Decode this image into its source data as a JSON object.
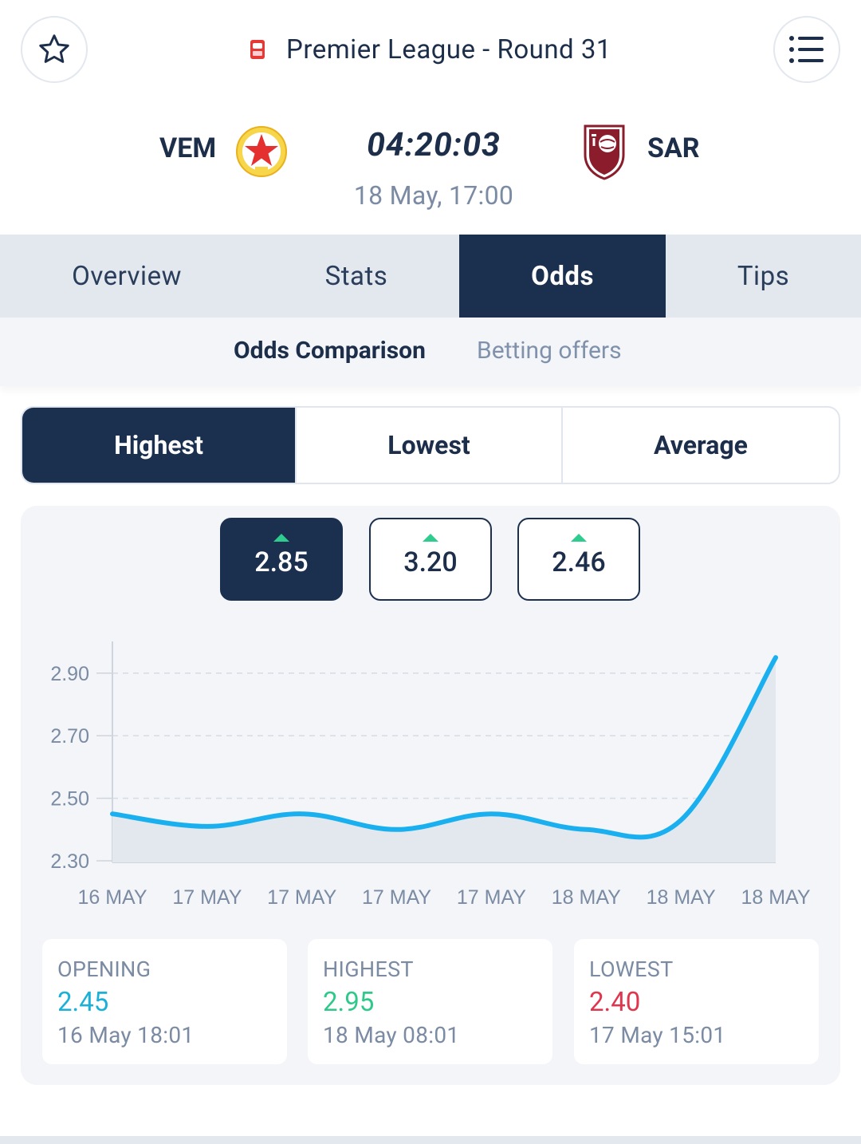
{
  "header": {
    "league_title": "Premier League - Round 31"
  },
  "match": {
    "home_code": "VEM",
    "away_code": "SAR",
    "countdown": "04:20:03",
    "kickoff": "18 May, 17:00"
  },
  "tabs": [
    {
      "label": "Overview",
      "active": false
    },
    {
      "label": "Stats",
      "active": false
    },
    {
      "label": "Odds",
      "active": true
    },
    {
      "label": "Tips",
      "active": false
    }
  ],
  "subtabs": [
    {
      "label": "Odds Comparison",
      "active": true
    },
    {
      "label": "Betting offers",
      "active": false
    }
  ],
  "segments": [
    {
      "label": "Highest",
      "active": true
    },
    {
      "label": "Lowest",
      "active": false
    },
    {
      "label": "Average",
      "active": false
    }
  ],
  "odds_buttons": [
    {
      "value": "2.85",
      "trend": "up",
      "active": true
    },
    {
      "value": "3.20",
      "trend": "up",
      "active": false
    },
    {
      "value": "2.46",
      "trend": "up",
      "active": false
    }
  ],
  "chart_data": {
    "type": "area",
    "x": [
      "16 MAY",
      "17 MAY",
      "17 MAY",
      "17 MAY",
      "17 MAY",
      "18 MAY",
      "18 MAY",
      "18 MAY"
    ],
    "series": [
      {
        "values": [
          2.45,
          2.41,
          2.45,
          2.4,
          2.45,
          2.4,
          2.43,
          2.95
        ]
      }
    ],
    "yticks": [
      "2.90",
      "2.70",
      "2.50",
      "2.30"
    ],
    "ylim": [
      2.3,
      2.95
    ],
    "grid": true,
    "line_color": "#1ab0f0"
  },
  "stats": [
    {
      "label": "OPENING",
      "value": "2.45",
      "time": "16 May 18:01",
      "color": "#1ab0d8"
    },
    {
      "label": "HIGHEST",
      "value": "2.95",
      "time": "18 May 08:01",
      "color": "#2ec98a"
    },
    {
      "label": "LOWEST",
      "value": "2.40",
      "time": "17 May 15:01",
      "color": "#e0354e"
    }
  ]
}
